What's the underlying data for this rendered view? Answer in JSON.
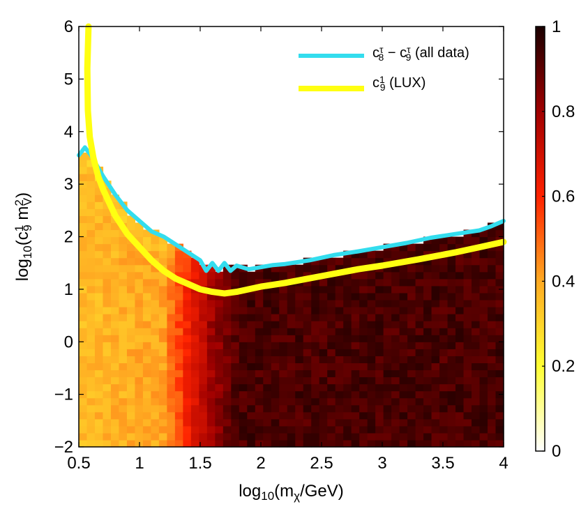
{
  "chart_data": {
    "type": "heatmap",
    "x_axis": {
      "label_parts": [
        "log",
        "10",
        "(m",
        "χ",
        "/GeV)"
      ],
      "range": [
        0.5,
        4
      ],
      "ticks": [
        0.5,
        1,
        1.5,
        2,
        2.5,
        3,
        3.5,
        4
      ],
      "tick_labels": [
        "0.5",
        "1",
        "1.5",
        "2",
        "2.5",
        "3",
        "3.5",
        "4"
      ]
    },
    "y_axis": {
      "label_parts": [
        "log",
        "10",
        "(c",
        "1",
        "9",
        " m",
        "2",
        "V",
        ")"
      ],
      "range": [
        -2,
        6
      ],
      "ticks": [
        -2,
        -1,
        0,
        1,
        2,
        3,
        4,
        5,
        6
      ],
      "tick_labels": [
        "−2",
        "−1",
        "0",
        "1",
        "2",
        "3",
        "4",
        "5",
        "6"
      ]
    },
    "colorbar": {
      "range": [
        0,
        1
      ],
      "ticks": [
        0,
        0.2,
        0.4,
        0.6,
        0.8,
        1
      ],
      "tick_labels": [
        "0",
        "0.2",
        "0.4",
        "0.6",
        "0.8",
        "1"
      ],
      "colors": [
        "#ffffff",
        "#ffff33",
        "#ffaa22",
        "#ff2200",
        "#a00000",
        "#1a0000"
      ]
    },
    "grid": false,
    "legend": {
      "placement": "top-right",
      "entries": [
        {
          "parts": [
            "c",
            "τ",
            "8",
            " − c",
            "τ",
            "9",
            " (all data)"
          ],
          "color": "#33ddee"
        },
        {
          "parts": [
            "c",
            "1",
            "9",
            " (LUX)"
          ],
          "color": "#ffff11"
        }
      ]
    },
    "series": [
      {
        "name": "c8τ − c9τ (all data)",
        "type": "line",
        "color": "#33ddee",
        "x": [
          0.5,
          0.55,
          0.6,
          0.7,
          0.8,
          0.9,
          1.0,
          1.1,
          1.2,
          1.3,
          1.4,
          1.5,
          1.55,
          1.6,
          1.65,
          1.7,
          1.75,
          1.8,
          1.9,
          2.0,
          2.1,
          2.2,
          2.4,
          2.6,
          2.8,
          3.0,
          3.2,
          3.4,
          3.6,
          3.8,
          3.9,
          4.0
        ],
        "y": [
          3.55,
          3.7,
          3.55,
          3.15,
          2.8,
          2.5,
          2.3,
          2.1,
          2.0,
          1.85,
          1.7,
          1.55,
          1.35,
          1.5,
          1.35,
          1.5,
          1.35,
          1.45,
          1.38,
          1.42,
          1.46,
          1.48,
          1.55,
          1.65,
          1.72,
          1.8,
          1.88,
          1.98,
          2.05,
          2.12,
          2.2,
          2.3
        ]
      },
      {
        "name": "c9¹ (LUX)",
        "type": "line",
        "color": "#ffff11",
        "x": [
          0.58,
          0.57,
          0.575,
          0.59,
          0.62,
          0.66,
          0.7,
          0.8,
          0.9,
          1.0,
          1.1,
          1.2,
          1.3,
          1.4,
          1.5,
          1.6,
          1.7,
          1.8,
          2.0,
          2.2,
          2.5,
          2.8,
          3.0,
          3.3,
          3.6,
          3.8,
          4.0
        ],
        "y": [
          6.0,
          5.2,
          4.4,
          3.9,
          3.5,
          3.15,
          2.9,
          2.4,
          2.05,
          1.8,
          1.55,
          1.35,
          1.2,
          1.1,
          1.0,
          0.95,
          0.92,
          0.95,
          1.05,
          1.12,
          1.25,
          1.38,
          1.45,
          1.57,
          1.7,
          1.8,
          1.9
        ]
      }
    ],
    "heatmap_rows": 60,
    "heatmap_note": "values rise from ~0.35 at low mass to ~0.95 above 1.7; data only below the cyan exclusion boundary"
  }
}
